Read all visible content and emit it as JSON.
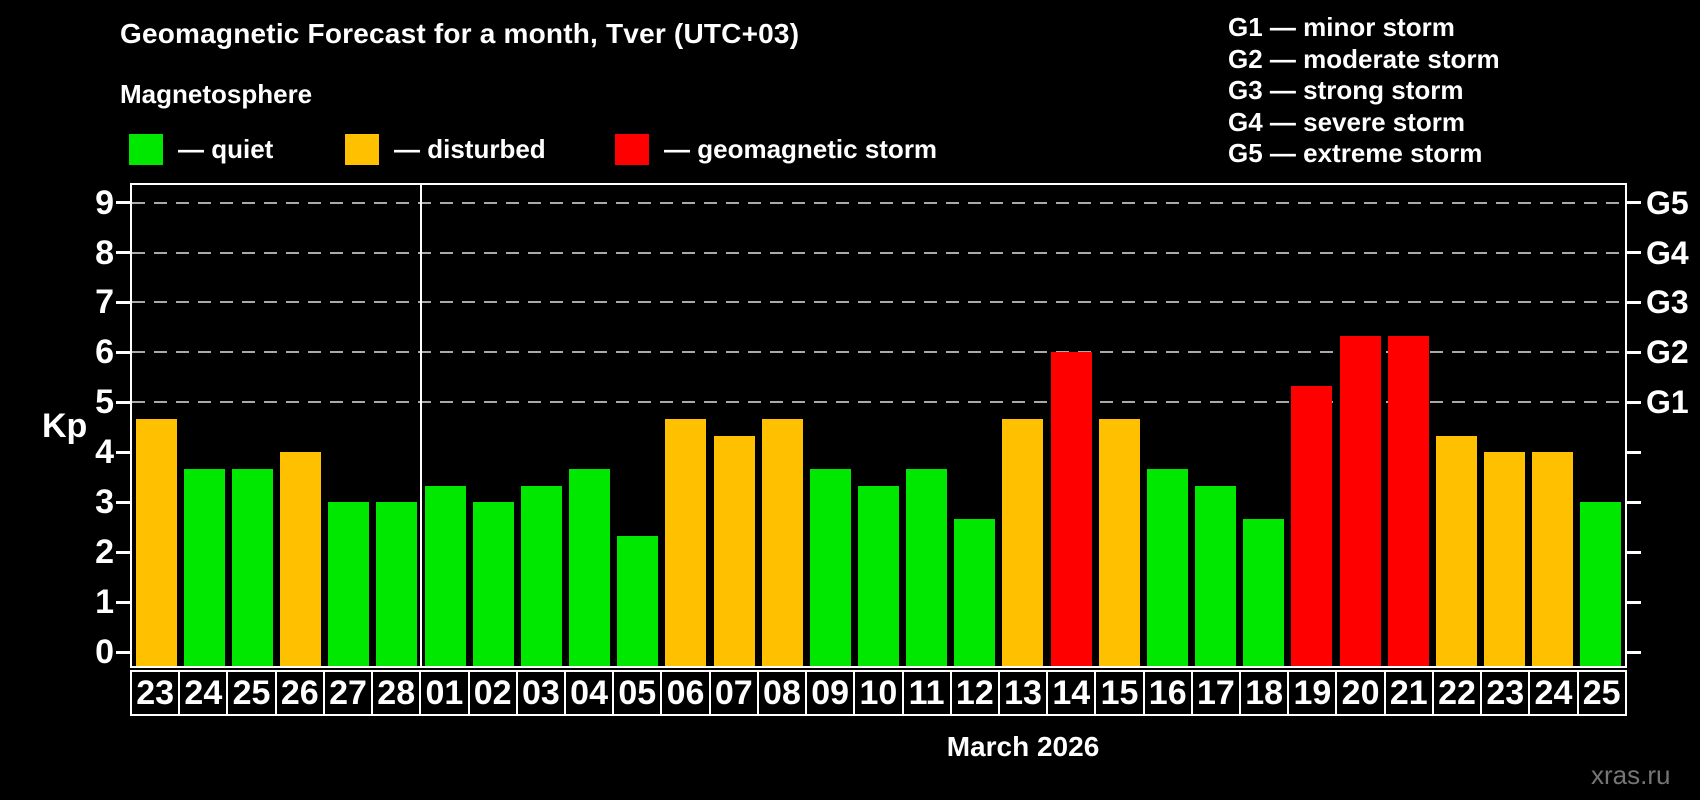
{
  "title": "Geomagnetic Forecast for a month, Tver (UTC+03)",
  "subtitle": "Magnetosphere",
  "watermark": "xras.ru",
  "legend": {
    "items": [
      {
        "key": "quiet",
        "label": "— quiet",
        "color": "#00e800"
      },
      {
        "key": "disturbed",
        "label": "— disturbed",
        "color": "#ffc000"
      },
      {
        "key": "storm",
        "label": "— geomagnetic storm",
        "color": "#ff0000"
      }
    ]
  },
  "g_scale_legend": [
    "G1 — minor storm",
    "G2 — moderate storm",
    "G3 — strong storm",
    "G4 — severe storm",
    "G5 — extreme storm"
  ],
  "chart_data": {
    "type": "bar",
    "title": "Geomagnetic Forecast for a month, Tver (UTC+03)",
    "ylabel": "Kp",
    "xlabel": "March 2026",
    "ylim": [
      0,
      9
    ],
    "y_ticks": [
      0,
      1,
      2,
      3,
      4,
      5,
      6,
      7,
      8,
      9
    ],
    "gridlines_at_kp": [
      5,
      6,
      7,
      8,
      9
    ],
    "grid": true,
    "legend_position": "top",
    "right_axis": [
      {
        "label": "G1",
        "kp": 5
      },
      {
        "label": "G2",
        "kp": 6
      },
      {
        "label": "G3",
        "kp": 7
      },
      {
        "label": "G4",
        "kp": 8
      },
      {
        "label": "G5",
        "kp": 9
      }
    ],
    "separator_after_index": 5,
    "categories": [
      "23",
      "24",
      "25",
      "26",
      "27",
      "28",
      "01",
      "02",
      "03",
      "04",
      "05",
      "06",
      "07",
      "08",
      "09",
      "10",
      "11",
      "12",
      "13",
      "14",
      "15",
      "16",
      "17",
      "18",
      "19",
      "20",
      "21",
      "22",
      "23",
      "24",
      "25"
    ],
    "values": [
      4.67,
      3.67,
      3.67,
      4.0,
      3.0,
      3.0,
      3.33,
      3.0,
      3.33,
      3.67,
      2.33,
      4.67,
      4.33,
      4.67,
      3.67,
      3.33,
      3.67,
      2.67,
      4.67,
      6.0,
      4.67,
      3.67,
      3.33,
      2.67,
      5.33,
      6.33,
      6.33,
      4.33,
      4.0,
      4.0,
      3.0
    ],
    "statuses": [
      "disturbed",
      "quiet",
      "quiet",
      "disturbed",
      "quiet",
      "quiet",
      "quiet",
      "quiet",
      "quiet",
      "quiet",
      "quiet",
      "disturbed",
      "disturbed",
      "disturbed",
      "quiet",
      "quiet",
      "quiet",
      "quiet",
      "disturbed",
      "storm",
      "disturbed",
      "quiet",
      "quiet",
      "quiet",
      "storm",
      "storm",
      "storm",
      "disturbed",
      "disturbed",
      "disturbed",
      "quiet"
    ],
    "status_colors": {
      "quiet": "#00e800",
      "disturbed": "#ffc000",
      "storm": "#ff0000"
    }
  }
}
